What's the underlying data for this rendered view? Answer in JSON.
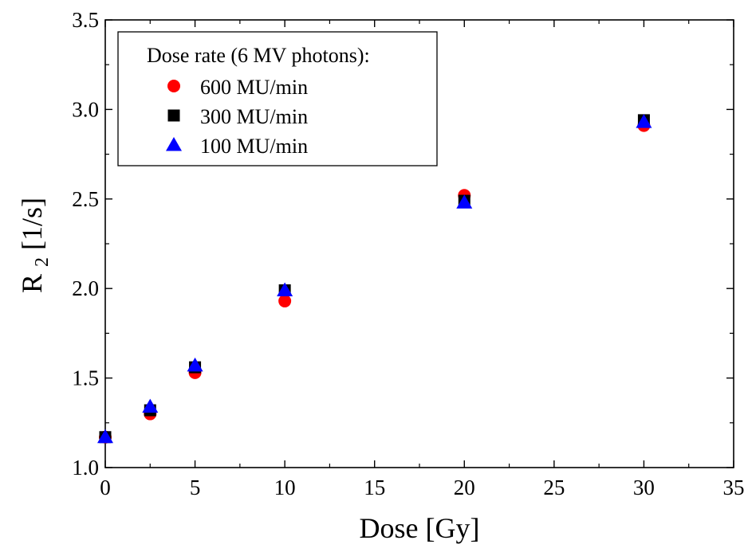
{
  "chart_data": {
    "type": "scatter",
    "xlabel": "Dose [Gy]",
    "ylabel": {
      "main": "R",
      "subscript": "2",
      "unit": " [1/s]"
    },
    "xlim": [
      0,
      35
    ],
    "ylim": [
      1.0,
      3.5
    ],
    "xticks": [
      "0",
      "5",
      "10",
      "15",
      "20",
      "25",
      "30",
      "35"
    ],
    "yticks": [
      "1.0",
      "1.5",
      "2.0",
      "2.5",
      "3.0",
      "3.5"
    ],
    "xtick_values": [
      0,
      5,
      10,
      15,
      20,
      25,
      30,
      35
    ],
    "ytick_values": [
      1.0,
      1.5,
      2.0,
      2.5,
      3.0,
      3.5
    ],
    "grid": false,
    "legend": {
      "title": "Dose rate (6 MV photons):",
      "placement": "top-left"
    },
    "series": [
      {
        "name": "600 MU/min",
        "marker": "circle",
        "color": "#ff0000",
        "x": [
          0,
          2.5,
          5,
          10,
          20,
          30
        ],
        "y": [
          1.17,
          1.3,
          1.53,
          1.93,
          2.52,
          2.91
        ]
      },
      {
        "name": "300 MU/min",
        "marker": "square",
        "color": "#000000",
        "x": [
          0,
          2.5,
          5,
          10,
          20,
          30
        ],
        "y": [
          1.17,
          1.32,
          1.56,
          1.99,
          2.49,
          2.94
        ]
      },
      {
        "name": "100 MU/min",
        "marker": "triangle",
        "color": "#0000ff",
        "x": [
          0,
          2.5,
          5,
          10,
          20,
          30
        ],
        "y": [
          1.17,
          1.34,
          1.57,
          1.99,
          2.48,
          2.93
        ]
      }
    ]
  }
}
